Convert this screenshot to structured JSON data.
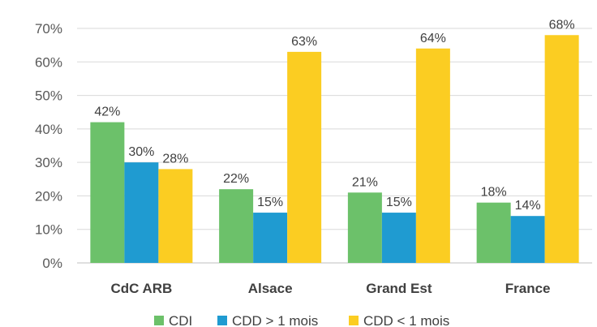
{
  "chart_data": {
    "type": "bar",
    "categories": [
      "CdC ARB",
      "Alsace",
      "Grand Est",
      "France"
    ],
    "series": [
      {
        "name": "CDI",
        "color": "#6cc16a",
        "values": [
          42,
          22,
          21,
          18
        ],
        "labels": [
          "42%",
          "22%",
          "21%",
          "18%"
        ]
      },
      {
        "name": "CDD > 1 mois",
        "color": "#1f9bd1",
        "values": [
          30,
          15,
          15,
          14
        ],
        "labels": [
          "30%",
          "15%",
          "15%",
          "14%"
        ]
      },
      {
        "name": "CDD < 1 mois",
        "color": "#fbcd22",
        "values": [
          28,
          63,
          64,
          68
        ],
        "labels": [
          "28%",
          "63%",
          "64%",
          "68%"
        ]
      }
    ],
    "ylim": [
      0,
      70
    ],
    "yticks": [
      {
        "value": 0,
        "label": "0%"
      },
      {
        "value": 10,
        "label": "10%"
      },
      {
        "value": 20,
        "label": "20%"
      },
      {
        "value": 30,
        "label": "30%"
      },
      {
        "value": 40,
        "label": "40%"
      },
      {
        "value": 50,
        "label": "50%"
      },
      {
        "value": 60,
        "label": "60%"
      },
      {
        "value": 70,
        "label": "70%"
      }
    ],
    "gridlines": true,
    "legend_position": "bottom",
    "title": "",
    "xlabel": "",
    "ylabel": ""
  }
}
